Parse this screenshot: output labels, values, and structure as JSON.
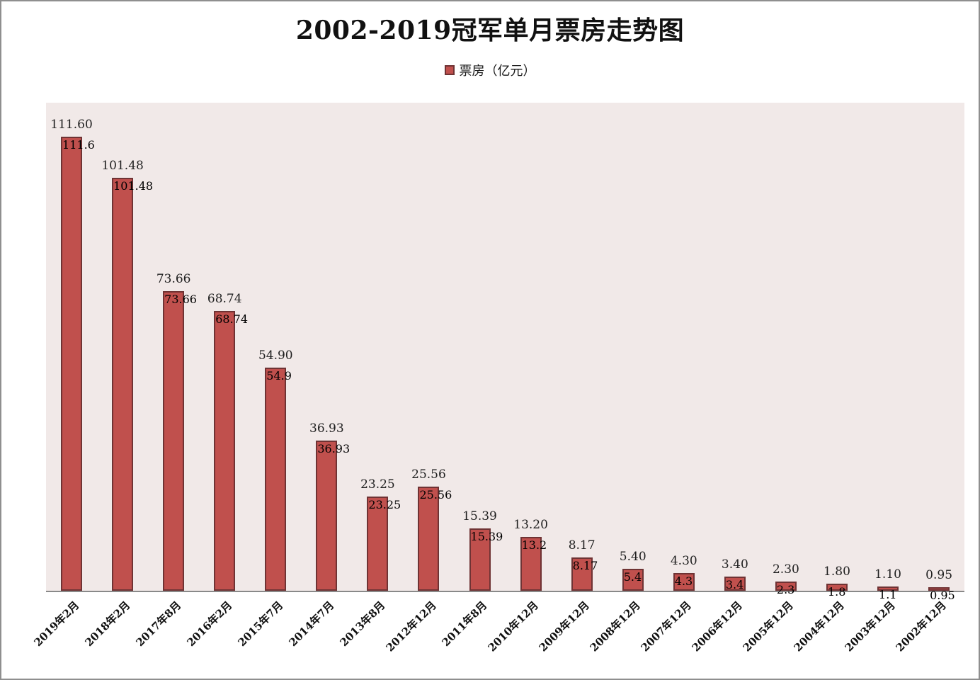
{
  "page": {
    "background": "#ffffff",
    "border_color": "#8f8f8f"
  },
  "header": {
    "title": "2002-2019冠军单月票房走势图"
  },
  "legend": {
    "label": "票房（亿元）"
  },
  "colors": {
    "bar_fill": "#c0504d",
    "bar_border": "#6f3334",
    "plot_background": "#f1e9e8",
    "axis_line": "#898989"
  },
  "chart_data": {
    "type": "bar",
    "title": "2002-2019冠军单月票房走势图",
    "legend_entries": [
      "票房（亿元）"
    ],
    "legend_position": "top-center",
    "categories": [
      "2019年2月",
      "2018年2月",
      "2017年8月",
      "2016年2月",
      "2015年7月",
      "2014年7月",
      "2013年8月",
      "2012年12月",
      "2011年8月",
      "2010年12月",
      "2009年12月",
      "2008年12月",
      "2007年12月",
      "2006年12月",
      "2005年12月",
      "2004年12月",
      "2003年12月",
      "2002年12月"
    ],
    "values": [
      111.6,
      101.48,
      73.66,
      68.74,
      54.9,
      36.93,
      23.25,
      25.56,
      15.39,
      13.2,
      8.17,
      5.4,
      4.3,
      3.4,
      2.3,
      1.8,
      1.1,
      0.95
    ],
    "value_labels": [
      "111.60",
      "101.48",
      "73.66",
      "68.74",
      "54.90",
      "36.93",
      "23.25",
      "25.56",
      "15.39",
      "13.20",
      "8.17",
      "5.40",
      "4.30",
      "3.40",
      "2.30",
      "1.80",
      "1.10",
      "0.95"
    ],
    "xlabel": "",
    "ylabel": "票房（亿元）",
    "ylim": [
      0,
      120
    ],
    "grid": false,
    "x_tick_rotation_deg": 45,
    "value_labels_shown": true
  }
}
